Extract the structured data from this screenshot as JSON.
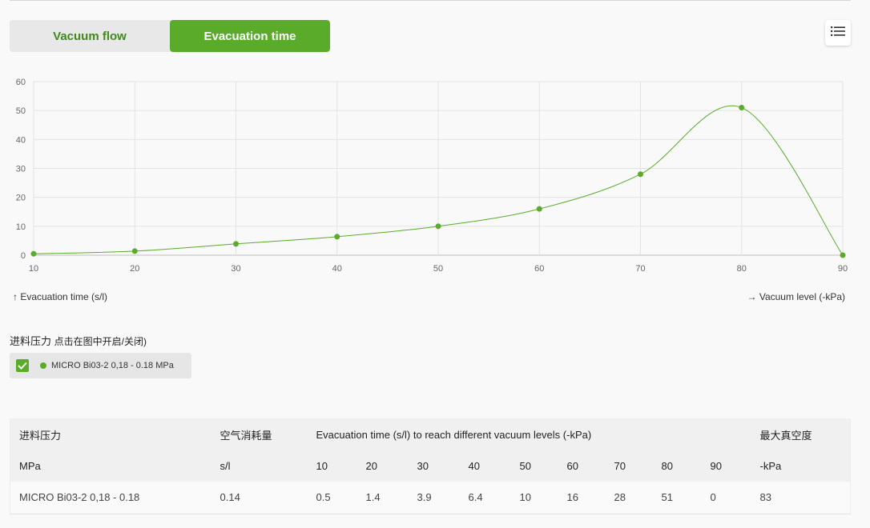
{
  "tabs": [
    {
      "label": "Vacuum flow",
      "active": false
    },
    {
      "label": "Evacuation time",
      "active": true
    }
  ],
  "menu": {
    "icon": "list-icon"
  },
  "colors": {
    "accent": "#5aab2a",
    "accent_text": "#3f8a1d",
    "grid": "#e3e3e3"
  },
  "chart_data": {
    "type": "line",
    "x": [
      10,
      20,
      30,
      40,
      50,
      60,
      70,
      80,
      90
    ],
    "series": [
      {
        "name": "MICRO Bi03-2 0,18 - 0.18 MPa",
        "values": [
          0.5,
          1.4,
          3.9,
          6.4,
          10,
          16,
          28,
          51,
          0
        ]
      }
    ],
    "xlim": [
      10,
      90
    ],
    "ylim": [
      0,
      60
    ],
    "xticks": [
      "10",
      "20",
      "30",
      "40",
      "50",
      "60",
      "70",
      "80",
      "90"
    ],
    "yticks": [
      "0",
      "10",
      "20",
      "30",
      "40",
      "50",
      "60"
    ],
    "ylabel": "↑ Evacuation time (s/l)",
    "xlabel": "→ Vacuum level (-kPa)",
    "grid": true
  },
  "legend": {
    "title": "进料压力",
    "hint": "点击在图中开启/关闭)",
    "items": [
      {
        "label": "MICRO Bi03-2 0,18 - 0.18 MPa",
        "checked": true
      }
    ]
  },
  "table": {
    "header1": {
      "pressure": "进料压力",
      "air": "空气消耗量",
      "evac": "Evacuation time (s/l) to reach different vacuum levels (-kPa)",
      "max": "最大真空度"
    },
    "header2": {
      "pressure_unit": "MPa",
      "air_unit": "s/l",
      "levels": [
        "10",
        "20",
        "30",
        "40",
        "50",
        "60",
        "70",
        "80",
        "90"
      ],
      "max_unit": "-kPa"
    },
    "rows": [
      {
        "name": "MICRO Bi03-2 0,18 - 0.18",
        "air": "0.14",
        "values": [
          "0.5",
          "1.4",
          "3.9",
          "6.4",
          "10",
          "16",
          "28",
          "51",
          "0"
        ],
        "max": "83"
      }
    ]
  }
}
